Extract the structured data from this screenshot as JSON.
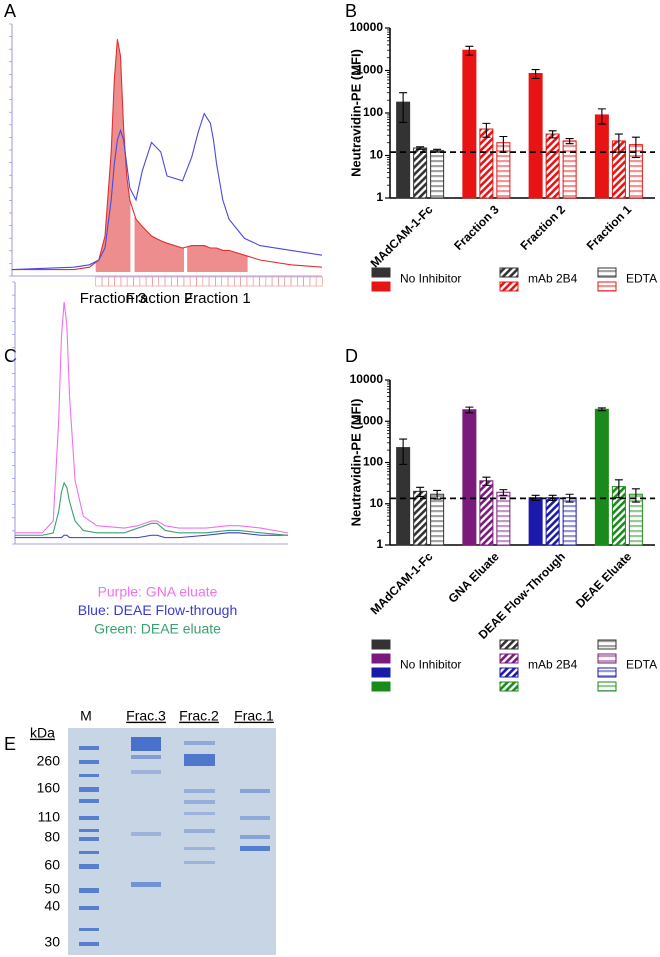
{
  "panel_labels": [
    "A",
    "B",
    "C",
    "D",
    "E"
  ],
  "chart_data": [
    {
      "type": "line",
      "xlim": [
        0,
        100
      ],
      "ylim": [
        0,
        100
      ],
      "x": [
        0,
        20,
        25,
        28,
        30,
        32,
        33,
        34,
        35,
        36,
        37,
        38,
        40,
        42,
        45,
        48,
        50,
        55,
        58,
        60,
        62,
        64,
        65,
        66,
        68,
        70,
        75,
        80,
        90,
        100
      ],
      "series": [
        {
          "color": "#e03030",
          "values": [
            1,
            1,
            2,
            5,
            15,
            50,
            80,
            97,
            90,
            60,
            40,
            30,
            22,
            19,
            15,
            13,
            12,
            10,
            11,
            11,
            11,
            10,
            10,
            10,
            9,
            9,
            7,
            5,
            3,
            2
          ]
        },
        {
          "color": "#4a4ae0",
          "values": [
            1,
            2,
            3,
            5,
            10,
            30,
            45,
            55,
            59,
            55,
            45,
            35,
            30,
            42,
            54,
            50,
            40,
            38,
            48,
            58,
            66,
            62,
            55,
            45,
            30,
            22,
            14,
            11,
            9,
            7
          ]
        }
      ],
      "fractions": [
        {
          "label": "Fraction 3",
          "range": [
            27,
            38.2
          ]
        },
        {
          "label": "Fraction 2",
          "range": [
            39.5,
            55.5
          ]
        },
        {
          "label": "Fraction 1",
          "range": [
            56.5,
            76
          ]
        }
      ]
    },
    {
      "type": "bar",
      "log": true,
      "ylabel": "Neutravidin-PE (MFI)",
      "ylim": [
        1,
        10000
      ],
      "yticks": [
        1,
        10,
        100,
        1000,
        10000
      ],
      "categories": [
        "MAdCAM-1-Fc",
        "Fraction 3",
        "Fraction 2",
        "Fraction 1"
      ],
      "category_colors": [
        "#333333",
        "#e81414",
        "#e81414",
        "#e81414"
      ],
      "reference_line": 12,
      "series": [
        {
          "name": "No Inhibitor",
          "pattern": "solid",
          "values": [
            180,
            3000,
            850,
            90
          ],
          "errors": [
            120,
            700,
            200,
            35
          ]
        },
        {
          "name": "mAb 2B4",
          "pattern": "hatch",
          "values": [
            15,
            42,
            32,
            22
          ],
          "errors": [
            1,
            15,
            6,
            10
          ]
        },
        {
          "name": "EDTA",
          "pattern": "stripes",
          "values": [
            13,
            20,
            22,
            18
          ],
          "errors": [
            1,
            8,
            3,
            9
          ]
        }
      ]
    },
    {
      "type": "line",
      "xlim": [
        0,
        100
      ],
      "ylim": [
        0,
        105
      ],
      "x": [
        0,
        10,
        14,
        16,
        17,
        18,
        19,
        20,
        22,
        25,
        30,
        40,
        45,
        50,
        52,
        55,
        60,
        70,
        78,
        82,
        90,
        100
      ],
      "series": [
        {
          "name": "Purple:  GNA eluate",
          "color": "#f070f0",
          "values": [
            3,
            3,
            8,
            50,
            85,
            100,
            90,
            60,
            25,
            10,
            6,
            5,
            6,
            8,
            8,
            6,
            5,
            5,
            6,
            6,
            5,
            3
          ]
        },
        {
          "name": "Blue:  DEAE Flow-through",
          "color": "#3a3ad0",
          "values": [
            1,
            1,
            1,
            1,
            1,
            2,
            2,
            1,
            1,
            1,
            1,
            1,
            1,
            2,
            2,
            1,
            1,
            2,
            3,
            3,
            2,
            2
          ]
        },
        {
          "name": "Green:  DEAE eluate",
          "color": "#3aa070",
          "values": [
            2,
            2,
            3,
            12,
            20,
            24,
            22,
            16,
            8,
            4,
            3,
            3,
            5,
            7,
            7,
            4,
            3,
            3,
            4,
            4,
            3,
            2
          ]
        }
      ]
    },
    {
      "type": "bar",
      "log": true,
      "ylabel": "Neutravidin-PE (MFI)",
      "ylim": [
        1,
        10000
      ],
      "yticks": [
        1,
        10,
        100,
        1000,
        10000
      ],
      "categories": [
        "MAdCAM-1-Fc",
        "GNA Eluate",
        "DEAE Flow-Through",
        "DEAE Eluate"
      ],
      "category_colors": [
        "#333333",
        "#7a1a7a",
        "#1a1aaa",
        "#1a8a1a"
      ],
      "reference_line": 13.5,
      "series": [
        {
          "name": "No Inhibitor",
          "pattern": "solid",
          "values": [
            230,
            1900,
            14,
            1950
          ],
          "errors": [
            140,
            300,
            2,
            150
          ]
        },
        {
          "name": "mAb 2B4",
          "pattern": "hatch",
          "values": [
            20,
            36,
            14,
            26
          ],
          "errors": [
            5,
            8,
            2,
            12
          ]
        },
        {
          "name": "EDTA",
          "pattern": "stripes",
          "values": [
            17,
            19,
            14,
            17
          ],
          "errors": [
            4,
            3,
            3,
            6
          ]
        }
      ]
    }
  ],
  "gel": {
    "lanes": [
      "M",
      "Frac.3",
      "Frac.2",
      "Frac.1"
    ],
    "unit": "kDa",
    "markers": [
      260,
      160,
      110,
      80,
      60,
      50,
      40,
      30
    ]
  }
}
